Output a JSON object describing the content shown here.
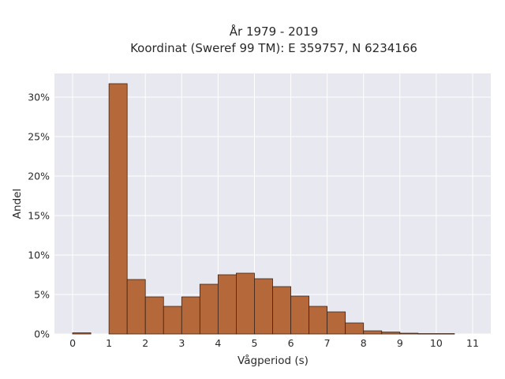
{
  "chart_data": {
    "type": "bar",
    "title": "År 1979 - 2019",
    "subtitle": "Koordinat (Sweref 99 TM): E 359757, N 6234166",
    "xlabel": "Vågperiod (s)",
    "ylabel": "Andel",
    "bin_width": 0.5,
    "bins": [
      {
        "x0": 0.0,
        "value": 0.15
      },
      {
        "x0": 0.5,
        "value": 0.0
      },
      {
        "x0": 1.0,
        "value": 31.7
      },
      {
        "x0": 1.5,
        "value": 6.9
      },
      {
        "x0": 2.0,
        "value": 4.7
      },
      {
        "x0": 2.5,
        "value": 3.5
      },
      {
        "x0": 3.0,
        "value": 4.7
      },
      {
        "x0": 3.5,
        "value": 6.3
      },
      {
        "x0": 4.0,
        "value": 7.5
      },
      {
        "x0": 4.5,
        "value": 7.7
      },
      {
        "x0": 5.0,
        "value": 7.0
      },
      {
        "x0": 5.5,
        "value": 6.0
      },
      {
        "x0": 6.0,
        "value": 4.8
      },
      {
        "x0": 6.5,
        "value": 3.5
      },
      {
        "x0": 7.0,
        "value": 2.8
      },
      {
        "x0": 7.5,
        "value": 1.4
      },
      {
        "x0": 8.0,
        "value": 0.4
      },
      {
        "x0": 8.5,
        "value": 0.25
      },
      {
        "x0": 9.0,
        "value": 0.1
      },
      {
        "x0": 9.5,
        "value": 0.05
      },
      {
        "x0": 10.0,
        "value": 0.05
      }
    ],
    "xlim": [
      -0.5,
      11.5
    ],
    "ylim": [
      0,
      33
    ],
    "xticks": [
      0,
      1,
      2,
      3,
      4,
      5,
      6,
      7,
      8,
      9,
      10,
      11
    ],
    "xtick_labels": [
      "0",
      "1",
      "2",
      "3",
      "4",
      "5",
      "6",
      "7",
      "8",
      "9",
      "10",
      "11"
    ],
    "yticks": [
      0,
      5,
      10,
      15,
      20,
      25,
      30
    ],
    "ytick_labels": [
      "0%",
      "5%",
      "10%",
      "15%",
      "20%",
      "25%",
      "30%"
    ],
    "grid": true,
    "colors": {
      "bar_fill": "#b5693a",
      "bar_edge": "#3a2418",
      "plot_background": "#e8e8f0",
      "grid": "#ffffff"
    }
  }
}
